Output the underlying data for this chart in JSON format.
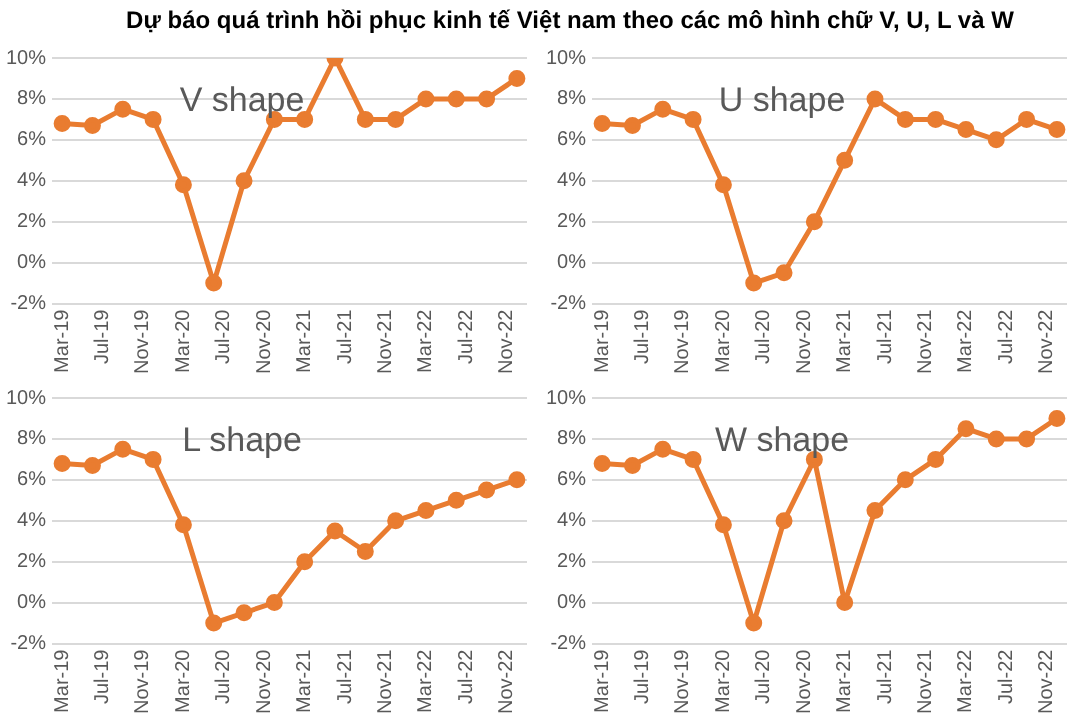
{
  "chart_data": [
    {
      "type": "line",
      "title": "Dự báo quá trình hồi phục kinh tế Việt nam theo các mô hình chữ V, U, L và W",
      "annotations": [
        "V shape"
      ],
      "x": [
        "2019-03",
        "2019-06",
        "2019-09",
        "2019-12",
        "2020-03",
        "2020-06",
        "2020-09",
        "2020-12",
        "2021-03",
        "2021-06",
        "2021-09",
        "2021-12",
        "2022-03",
        "2022-06",
        "2022-09",
        "2022-12"
      ],
      "series": [
        {
          "color": "#e97c30",
          "values": [
            6.8,
            6.7,
            7.5,
            7.0,
            3.8,
            -1,
            4,
            7,
            7,
            10,
            7,
            7,
            8,
            8,
            8,
            9
          ]
        }
      ],
      "xlim": [
        "2019-02",
        "2023-01"
      ],
      "xticks": [
        {
          "value": "2019-03",
          "label": "Mar-19"
        },
        {
          "value": "2019-07",
          "label": "Jul-19"
        },
        {
          "value": "2019-11",
          "label": "Nov-19"
        },
        {
          "value": "2020-03",
          "label": "Mar-20"
        },
        {
          "value": "2020-07",
          "label": "Jul-20"
        },
        {
          "value": "2020-11",
          "label": "Nov-20"
        },
        {
          "value": "2021-03",
          "label": "Mar-21"
        },
        {
          "value": "2021-07",
          "label": "Jul-21"
        },
        {
          "value": "2021-11",
          "label": "Nov-21"
        },
        {
          "value": "2022-03",
          "label": "Mar-22"
        },
        {
          "value": "2022-07",
          "label": "Jul-22"
        },
        {
          "value": "2022-11",
          "label": "Nov-22"
        }
      ],
      "ylim": [
        -2,
        10
      ],
      "yticks": [
        {
          "value": -2,
          "label": "-2%"
        },
        {
          "value": 0,
          "label": "0%"
        },
        {
          "value": 2,
          "label": "2%"
        },
        {
          "value": 4,
          "label": "4%"
        },
        {
          "value": 6,
          "label": "6%"
        },
        {
          "value": 8,
          "label": "8%"
        },
        {
          "value": 10,
          "label": "10%"
        }
      ],
      "grid": "y",
      "legend": false,
      "marker": "circle"
    },
    {
      "type": "line",
      "annotations": [
        "U shape"
      ],
      "x": [
        "2019-03",
        "2019-06",
        "2019-09",
        "2019-12",
        "2020-03",
        "2020-06",
        "2020-09",
        "2020-12",
        "2021-03",
        "2021-06",
        "2021-09",
        "2021-12",
        "2022-03",
        "2022-06",
        "2022-09",
        "2022-12"
      ],
      "series": [
        {
          "color": "#e97c30",
          "values": [
            6.8,
            6.7,
            7.5,
            7.0,
            3.8,
            -1,
            -0.5,
            2,
            5,
            8,
            7,
            7,
            6.5,
            6,
            7,
            6.5
          ]
        }
      ],
      "xlim": [
        "2019-02",
        "2023-01"
      ],
      "xticks": [
        {
          "value": "2019-03",
          "label": "Mar-19"
        },
        {
          "value": "2019-07",
          "label": "Jul-19"
        },
        {
          "value": "2019-11",
          "label": "Nov-19"
        },
        {
          "value": "2020-03",
          "label": "Mar-20"
        },
        {
          "value": "2020-07",
          "label": "Jul-20"
        },
        {
          "value": "2020-11",
          "label": "Nov-20"
        },
        {
          "value": "2021-03",
          "label": "Mar-21"
        },
        {
          "value": "2021-07",
          "label": "Jul-21"
        },
        {
          "value": "2021-11",
          "label": "Nov-21"
        },
        {
          "value": "2022-03",
          "label": "Mar-22"
        },
        {
          "value": "2022-07",
          "label": "Jul-22"
        },
        {
          "value": "2022-11",
          "label": "Nov-22"
        }
      ],
      "ylim": [
        -2,
        10
      ],
      "yticks": [
        {
          "value": -2,
          "label": "-2%"
        },
        {
          "value": 0,
          "label": "0%"
        },
        {
          "value": 2,
          "label": "2%"
        },
        {
          "value": 4,
          "label": "4%"
        },
        {
          "value": 6,
          "label": "6%"
        },
        {
          "value": 8,
          "label": "8%"
        },
        {
          "value": 10,
          "label": "10%"
        }
      ],
      "grid": "y",
      "legend": false,
      "marker": "circle"
    },
    {
      "type": "line",
      "annotations": [
        "L shape"
      ],
      "x": [
        "2019-03",
        "2019-06",
        "2019-09",
        "2019-12",
        "2020-03",
        "2020-06",
        "2020-09",
        "2020-12",
        "2021-03",
        "2021-06",
        "2021-09",
        "2021-12",
        "2022-03",
        "2022-06",
        "2022-09",
        "2022-12"
      ],
      "series": [
        {
          "color": "#e97c30",
          "values": [
            6.8,
            6.7,
            7.5,
            7.0,
            3.8,
            -1,
            -0.5,
            0,
            2,
            3.5,
            2.5,
            4,
            4.5,
            5,
            5.5,
            6
          ]
        }
      ],
      "xlim": [
        "2019-02",
        "2023-01"
      ],
      "xticks": [
        {
          "value": "2019-03",
          "label": "Mar-19"
        },
        {
          "value": "2019-07",
          "label": "Jul-19"
        },
        {
          "value": "2019-11",
          "label": "Nov-19"
        },
        {
          "value": "2020-03",
          "label": "Mar-20"
        },
        {
          "value": "2020-07",
          "label": "Jul-20"
        },
        {
          "value": "2020-11",
          "label": "Nov-20"
        },
        {
          "value": "2021-03",
          "label": "Mar-21"
        },
        {
          "value": "2021-07",
          "label": "Jul-21"
        },
        {
          "value": "2021-11",
          "label": "Nov-21"
        },
        {
          "value": "2022-03",
          "label": "Mar-22"
        },
        {
          "value": "2022-07",
          "label": "Jul-22"
        },
        {
          "value": "2022-11",
          "label": "Nov-22"
        }
      ],
      "ylim": [
        -2,
        10
      ],
      "yticks": [
        {
          "value": -2,
          "label": "-2%"
        },
        {
          "value": 0,
          "label": "0%"
        },
        {
          "value": 2,
          "label": "2%"
        },
        {
          "value": 4,
          "label": "4%"
        },
        {
          "value": 6,
          "label": "6%"
        },
        {
          "value": 8,
          "label": "8%"
        },
        {
          "value": 10,
          "label": "10%"
        }
      ],
      "grid": "y",
      "legend": false,
      "marker": "circle"
    },
    {
      "type": "line",
      "annotations": [
        "W shape"
      ],
      "x": [
        "2019-03",
        "2019-06",
        "2019-09",
        "2019-12",
        "2020-03",
        "2020-06",
        "2020-09",
        "2020-12",
        "2021-03",
        "2021-06",
        "2021-09",
        "2021-12",
        "2022-03",
        "2022-06",
        "2022-09",
        "2022-12"
      ],
      "series": [
        {
          "color": "#e97c30",
          "values": [
            6.8,
            6.7,
            7.5,
            7.0,
            3.8,
            -1,
            4,
            7,
            0,
            4.5,
            6,
            7,
            8.5,
            8,
            8,
            9
          ]
        }
      ],
      "xlim": [
        "2019-02",
        "2023-01"
      ],
      "xticks": [
        {
          "value": "2019-03",
          "label": "Mar-19"
        },
        {
          "value": "2019-07",
          "label": "Jul-19"
        },
        {
          "value": "2019-11",
          "label": "Nov-19"
        },
        {
          "value": "2020-03",
          "label": "Mar-20"
        },
        {
          "value": "2020-07",
          "label": "Jul-20"
        },
        {
          "value": "2020-11",
          "label": "Nov-20"
        },
        {
          "value": "2021-03",
          "label": "Mar-21"
        },
        {
          "value": "2021-07",
          "label": "Jul-21"
        },
        {
          "value": "2021-11",
          "label": "Nov-21"
        },
        {
          "value": "2022-03",
          "label": "Mar-22"
        },
        {
          "value": "2022-07",
          "label": "Jul-22"
        },
        {
          "value": "2022-11",
          "label": "Nov-22"
        }
      ],
      "ylim": [
        -2,
        10
      ],
      "yticks": [
        {
          "value": -2,
          "label": "-2%"
        },
        {
          "value": 0,
          "label": "0%"
        },
        {
          "value": 2,
          "label": "2%"
        },
        {
          "value": 4,
          "label": "4%"
        },
        {
          "value": 6,
          "label": "6%"
        },
        {
          "value": 8,
          "label": "8%"
        },
        {
          "value": 10,
          "label": "10%"
        }
      ],
      "grid": "y",
      "legend": false,
      "marker": "circle"
    }
  ]
}
